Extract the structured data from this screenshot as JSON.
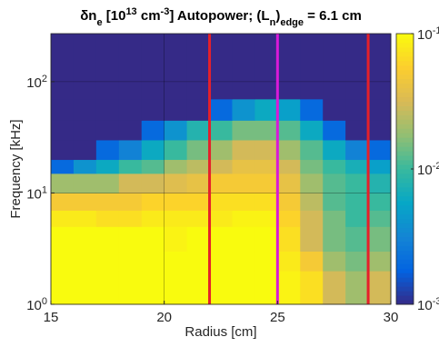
{
  "chart_data": {
    "type": "heatmap",
    "title": [
      {
        "text": "δn"
      },
      {
        "text": "e",
        "shift": "sub"
      },
      {
        "text": " [10"
      },
      {
        "text": "13",
        "shift": "sup"
      },
      {
        "text": " cm"
      },
      {
        "text": "-3",
        "shift": "sup"
      },
      {
        "text": "] Autopower; (L"
      },
      {
        "text": "n",
        "shift": "sub"
      },
      {
        "text": ")"
      },
      {
        "text": "edge",
        "shift": "sub"
      },
      {
        "text": " = 6.1 cm"
      }
    ],
    "x_label": "Radius [cm]",
    "y_label": "Frequency [kHz]",
    "xlim": [
      15,
      30
    ],
    "xticks": [
      15,
      20,
      25,
      30
    ],
    "ylim": [
      1,
      270
    ],
    "y_log": true,
    "yticks": [
      {
        "value": 1,
        "label": "10",
        "exponent": "0"
      },
      {
        "value": 10,
        "label": "10",
        "exponent": "1"
      },
      {
        "value": 100,
        "label": "10",
        "exponent": "2"
      }
    ],
    "grid": true,
    "colormap": "parula",
    "color_log": true,
    "clim": [
      0.001,
      0.1
    ],
    "cticks": [
      {
        "value": 0.001,
        "label": "10",
        "exponent": "-3"
      },
      {
        "value": 0.01,
        "label": "10",
        "exponent": "-2"
      },
      {
        "value": 0.1,
        "label": "10",
        "exponent": "-1"
      }
    ],
    "x_edges": [
      15,
      16,
      17,
      18,
      19,
      20,
      21,
      22,
      23,
      24,
      25,
      26,
      27,
      28,
      29,
      30
    ],
    "y_edges": [
      1,
      2,
      3,
      5,
      7,
      10,
      15,
      20,
      30,
      45,
      70,
      100,
      270
    ],
    "z": [
      [
        0.1,
        0.1,
        0.1,
        0.1,
        0.1,
        0.1,
        0.1,
        0.1,
        0.1,
        0.1,
        0.09,
        0.07,
        0.03,
        0.02,
        0.03
      ],
      [
        0.1,
        0.1,
        0.1,
        0.1,
        0.1,
        0.1,
        0.1,
        0.1,
        0.1,
        0.1,
        0.08,
        0.05,
        0.02,
        0.015,
        0.02
      ],
      [
        0.1,
        0.1,
        0.1,
        0.1,
        0.1,
        0.09,
        0.1,
        0.1,
        0.1,
        0.1,
        0.07,
        0.03,
        0.015,
        0.012,
        0.015
      ],
      [
        0.08,
        0.08,
        0.07,
        0.07,
        0.08,
        0.08,
        0.08,
        0.08,
        0.09,
        0.09,
        0.06,
        0.03,
        0.015,
        0.01,
        0.012
      ],
      [
        0.05,
        0.05,
        0.05,
        0.05,
        0.06,
        0.06,
        0.06,
        0.07,
        0.07,
        0.07,
        0.05,
        0.025,
        0.012,
        0.01,
        0.01
      ],
      [
        0.02,
        0.02,
        0.02,
        0.03,
        0.03,
        0.035,
        0.04,
        0.05,
        0.05,
        0.05,
        0.04,
        0.02,
        0.012,
        0.01,
        0.008
      ],
      [
        0.002,
        0.004,
        0.006,
        0.01,
        0.012,
        0.02,
        0.025,
        0.03,
        0.04,
        0.04,
        0.03,
        0.015,
        0.01,
        0.007,
        0.005
      ],
      [
        0.001,
        0.001,
        0.002,
        0.003,
        0.006,
        0.01,
        0.015,
        0.02,
        0.03,
        0.03,
        0.02,
        0.012,
        0.006,
        0.003,
        0.002
      ],
      [
        0.001,
        0.001,
        0.001,
        0.001,
        0.002,
        0.004,
        0.008,
        0.01,
        0.015,
        0.015,
        0.012,
        0.006,
        0.002,
        0.001,
        0.001
      ],
      [
        0.001,
        0.001,
        0.001,
        0.001,
        0.001,
        0.001,
        0.001,
        0.002,
        0.004,
        0.006,
        0.005,
        0.002,
        0.001,
        0.001,
        0.001
      ],
      [
        0.001,
        0.001,
        0.001,
        0.001,
        0.001,
        0.001,
        0.001,
        0.001,
        0.001,
        0.001,
        0.001,
        0.001,
        0.001,
        0.001,
        0.001
      ],
      [
        0.001,
        0.001,
        0.001,
        0.001,
        0.001,
        0.001,
        0.001,
        0.001,
        0.001,
        0.001,
        0.001,
        0.001,
        0.001,
        0.001,
        0.001
      ]
    ],
    "vlines": [
      {
        "x": 22,
        "color": "#e5202a"
      },
      {
        "x": 25,
        "color": "#d81ad8"
      },
      {
        "x": 29,
        "color": "#e5202a"
      }
    ]
  }
}
